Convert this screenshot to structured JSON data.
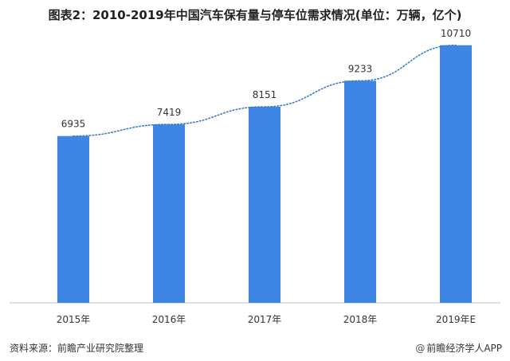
{
  "title": "图表2：2010-2019年中国汽车保有量与停车位需求情况(单位：万辆，亿个)",
  "chart_data": {
    "type": "bar",
    "categories": [
      "2015年",
      "2016年",
      "2017年",
      "2018年",
      "2019年E"
    ],
    "series": [
      {
        "values": [
          6935,
          7419,
          8151,
          9233,
          10710
        ]
      }
    ],
    "data_labels": [
      "6935",
      "7419",
      "8151",
      "9233",
      "10710"
    ],
    "trendline": true,
    "ylim": [
      0,
      11000
    ],
    "grid": false,
    "bar_color": "#3f86e4",
    "trend_color": "#3a7bc8"
  },
  "footer": {
    "source": "资料来源：前瞻产业研究院整理",
    "brand_symbol": "@",
    "brand": "前瞻经济学人APP"
  }
}
